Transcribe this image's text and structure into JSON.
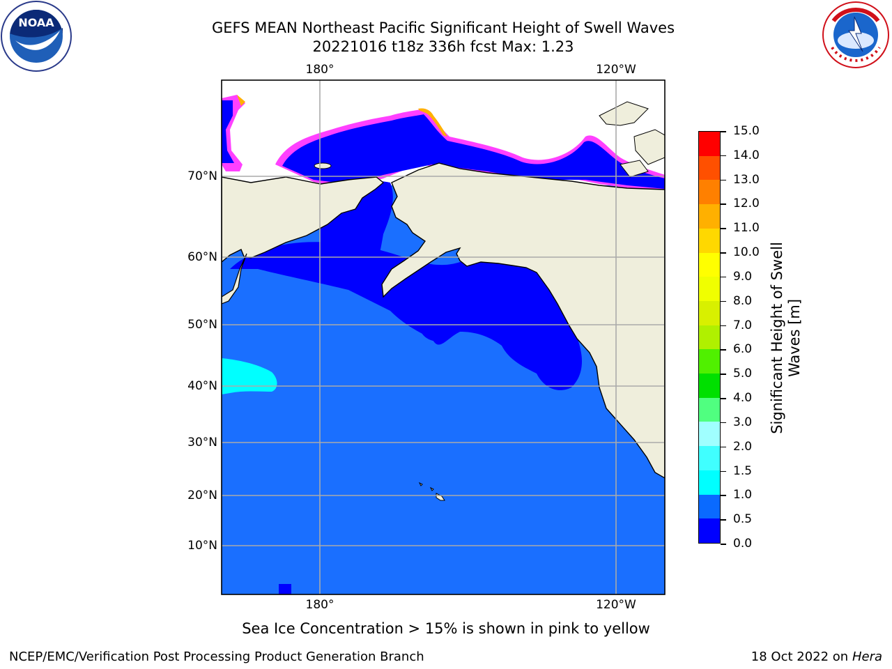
{
  "title_line1": "GEFS MEAN Northeast Pacific Significant Height of Swell Waves",
  "title_line2": "20221016 t18z 336h fcst   Max: 1.23",
  "logos": {
    "left": {
      "name": "noaa-logo",
      "text": "NOAA"
    },
    "right": {
      "name": "nws-logo",
      "text": "NATIONAL WEATHER SERVICE"
    }
  },
  "map": {
    "lon_ticks_top": [
      "180°",
      "120°W"
    ],
    "lon_ticks_bottom": [
      "180°",
      "120°W"
    ],
    "lat_ticks": [
      "70°N",
      "60°N",
      "50°N",
      "40°N",
      "30°N",
      "20°N",
      "10°N"
    ],
    "colors": {
      "ocean": "#1a6fff",
      "deep_low": "#0000ff",
      "land": "#efeedc",
      "grid": "#aaaaaa",
      "cyan_patch": "#00ffff",
      "ice_pink": "#ff40ff",
      "ice_orange": "#ffb000",
      "ice_yellow": "#ffff66"
    }
  },
  "colorbar": {
    "label": "Significant Height of Swell Waves [m]",
    "label_line1": "Significant Height of Swell",
    "label_line2": "Waves [m]",
    "ticks": [
      "15.0",
      "14.0",
      "13.0",
      "12.0",
      "11.0",
      "10.0",
      "9.0",
      "8.0",
      "7.0",
      "6.0",
      "5.0",
      "4.0",
      "3.0",
      "2.0",
      "1.5",
      "1.0",
      "0.5",
      "0.0"
    ],
    "colors_bottom_to_top": [
      "#0000ff",
      "#0a6aff",
      "#00ffff",
      "#40ffff",
      "#a0ffff",
      "#50ff80",
      "#00e000",
      "#50f000",
      "#b0f000",
      "#d8f000",
      "#f0ff00",
      "#ffff00",
      "#ffd800",
      "#ffb000",
      "#ff8000",
      "#ff5000",
      "#ff0000"
    ]
  },
  "notes": {
    "sea_ice": "Sea Ice Concentration > 15% is shown in pink to yellow"
  },
  "footer": {
    "left": "NCEP/EMC/Verification Post Processing Product Generation Branch",
    "right_prefix": "18 Oct 2022 on ",
    "right_host": "Hera"
  }
}
